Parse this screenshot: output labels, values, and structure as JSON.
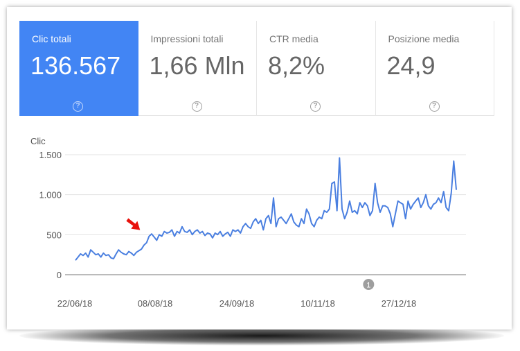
{
  "metrics": [
    {
      "label": "Clic totali",
      "value": "136.567",
      "active": true
    },
    {
      "label": "Impressioni totali",
      "value": "1,66 Mln",
      "active": false
    },
    {
      "label": "CTR media",
      "value": "8,2%",
      "active": false
    },
    {
      "label": "Posizione media",
      "value": "24,9",
      "active": false
    }
  ],
  "help_glyph": "?",
  "colors": {
    "accent": "#4285f4",
    "line": "#4a7fe0",
    "arrow": "#e8120c",
    "annotation": "#9e9e9e"
  },
  "annotation_marker": "1",
  "chart_data": {
    "type": "line",
    "ylabel": "Clic",
    "ylim": [
      0,
      1500
    ],
    "y_ticks": [
      {
        "value": 0,
        "label": "0"
      },
      {
        "value": 500,
        "label": "500"
      },
      {
        "value": 1000,
        "label": "1.000"
      },
      {
        "value": 1500,
        "label": "1.500"
      }
    ],
    "x_ticks": [
      "22/06/18",
      "08/08/18",
      "24/09/18",
      "10/11/18",
      "27/12/18"
    ],
    "series": [
      {
        "values": [
          180,
          220,
          260,
          240,
          270,
          220,
          310,
          280,
          250,
          260,
          220,
          270,
          240,
          250,
          210,
          200,
          260,
          310,
          280,
          260,
          250,
          290,
          270,
          240,
          280,
          300,
          320,
          370,
          400,
          480,
          510,
          470,
          430,
          500,
          480,
          540,
          520,
          530,
          560,
          480,
          540,
          520,
          600,
          540,
          530,
          560,
          500,
          540,
          560,
          520,
          540,
          490,
          520,
          510,
          460,
          520,
          500,
          540,
          480,
          510,
          530,
          480,
          560,
          540,
          560,
          520,
          600,
          640,
          600,
          580,
          660,
          700,
          640,
          680,
          560,
          700,
          740,
          640,
          960,
          600,
          700,
          720,
          680,
          640,
          700,
          760,
          660,
          620,
          600,
          700,
          640,
          820,
          760,
          640,
          600,
          680,
          720,
          700,
          800,
          780,
          820,
          1140,
          1160,
          800,
          1460,
          820,
          700,
          780,
          920,
          780,
          800,
          760,
          900,
          840,
          900,
          860,
          740,
          800,
          1140,
          900,
          780,
          860,
          860,
          840,
          760,
          600,
          760,
          920,
          900,
          880,
          700,
          920,
          820,
          880,
          920,
          960,
          840,
          900,
          1000,
          860,
          820,
          880,
          900,
          960,
          900,
          1040,
          840,
          800,
          1020,
          1420,
          1060
        ]
      }
    ],
    "annotations": [
      {
        "marker": "1",
        "x_index": 116
      }
    ],
    "arrow_x_index": 29
  }
}
